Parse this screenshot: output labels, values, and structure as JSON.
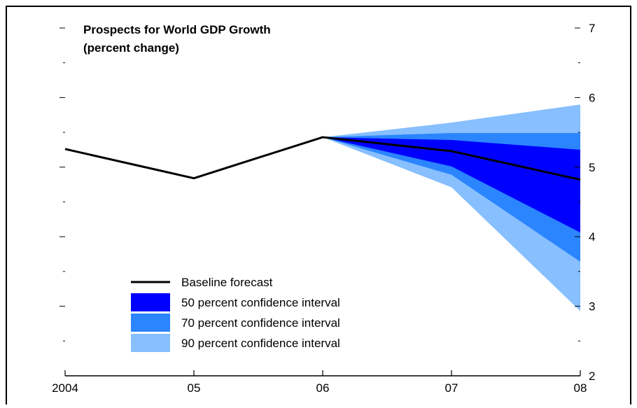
{
  "chart_data": {
    "type": "area",
    "title": "Prospects for World GDP Growth",
    "subtitle": "(percent change)",
    "x_categories": [
      "2004",
      "05",
      "06",
      "07",
      "08"
    ],
    "ylim": [
      2,
      7
    ],
    "y_ticks": [
      2,
      3,
      4,
      5,
      6,
      7
    ],
    "grid": false,
    "legend_position": "lower-left",
    "baseline": {
      "name": "Baseline forecast",
      "color": "#000000",
      "values": [
        5.26,
        4.84,
        5.43,
        5.23,
        4.82
      ]
    },
    "bands": [
      {
        "name": "90 percent confidence interval",
        "color": "#87BFFF",
        "x": [
          "06",
          "07",
          "08"
        ],
        "upper": [
          5.43,
          5.64,
          5.9
        ],
        "lower": [
          5.43,
          4.71,
          2.93
        ]
      },
      {
        "name": "70 percent confidence interval",
        "color": "#2B85FF",
        "x": [
          "06",
          "07",
          "08"
        ],
        "upper": [
          5.43,
          5.49,
          5.49
        ],
        "lower": [
          5.43,
          4.89,
          3.64
        ]
      },
      {
        "name": "50 percent confidence interval",
        "color": "#0000FF",
        "x": [
          "06",
          "07",
          "08"
        ],
        "upper": [
          5.43,
          5.39,
          5.25
        ],
        "lower": [
          5.43,
          5.01,
          4.06
        ]
      }
    ],
    "legend_order": [
      "Baseline forecast",
      "50 percent confidence interval",
      "70 percent confidence interval",
      "90 percent confidence interval"
    ]
  }
}
